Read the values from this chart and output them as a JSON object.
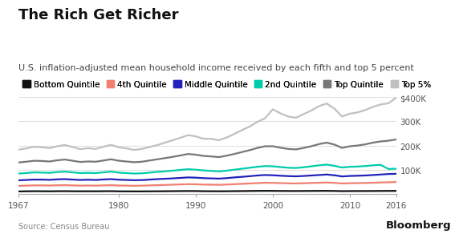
{
  "title": "The Rich Get Richer",
  "subtitle": "U.S. inflation-adjusted mean household income received by each fifth and top 5 percent",
  "source": "Source: Census Bureau",
  "bloomberg": "Bloomberg",
  "years": [
    1967,
    1968,
    1969,
    1970,
    1971,
    1972,
    1973,
    1974,
    1975,
    1976,
    1977,
    1978,
    1979,
    1980,
    1981,
    1982,
    1983,
    1984,
    1985,
    1986,
    1987,
    1988,
    1989,
    1990,
    1991,
    1992,
    1993,
    1994,
    1995,
    1996,
    1997,
    1998,
    1999,
    2000,
    2001,
    2002,
    2003,
    2004,
    2005,
    2006,
    2007,
    2008,
    2009,
    2010,
    2011,
    2012,
    2013,
    2014,
    2015,
    2016
  ],
  "series": {
    "Bottom Quintile": [
      10000,
      10500,
      11000,
      10800,
      10500,
      11000,
      11200,
      10800,
      10500,
      10700,
      10500,
      11000,
      11200,
      10500,
      10300,
      10100,
      10200,
      10500,
      10700,
      10900,
      11200,
      11500,
      11800,
      11500,
      11000,
      10800,
      10700,
      10900,
      11200,
      11500,
      11900,
      12200,
      12500,
      12300,
      12000,
      11800,
      11700,
      11900,
      12100,
      12300,
      12400,
      12000,
      11200,
      11500,
      11600,
      11700,
      11800,
      12000,
      12200,
      12300
    ],
    "4th Quintile": [
      33000,
      34000,
      35000,
      35000,
      34500,
      35500,
      36000,
      35000,
      34000,
      34500,
      34000,
      35000,
      36000,
      34500,
      34000,
      33500,
      33800,
      35000,
      36000,
      37000,
      38000,
      39000,
      40000,
      39500,
      38500,
      38000,
      37500,
      38500,
      40000,
      41500,
      43000,
      44500,
      46000,
      45500,
      44500,
      43500,
      43000,
      44000,
      45000,
      46000,
      47000,
      45500,
      43000,
      44000,
      44500,
      45000,
      46000,
      47000,
      48000,
      49000
    ],
    "Middle Quintile": [
      56000,
      57500,
      59000,
      59000,
      58000,
      60000,
      61000,
      59000,
      57500,
      58500,
      57500,
      59500,
      61000,
      58500,
      57500,
      56500,
      57000,
      59000,
      61000,
      62500,
      64000,
      66000,
      68000,
      67000,
      65000,
      64000,
      63000,
      65000,
      68000,
      70500,
      73000,
      76000,
      78000,
      77000,
      75000,
      73500,
      72500,
      74000,
      76000,
      78000,
      80000,
      77000,
      72000,
      74000,
      75000,
      76000,
      78000,
      80000,
      82000,
      83000
    ],
    "2nd Quintile": [
      84000,
      86000,
      89000,
      88000,
      87000,
      90000,
      92000,
      89000,
      86000,
      87000,
      86000,
      89000,
      92000,
      88000,
      86000,
      84000,
      85000,
      88000,
      91000,
      93000,
      96000,
      99000,
      102000,
      100000,
      97000,
      95000,
      93000,
      96000,
      100000,
      104000,
      108000,
      112000,
      115000,
      114000,
      111000,
      108000,
      107000,
      110000,
      114000,
      118000,
      121000,
      116000,
      109000,
      112000,
      113000,
      115000,
      118000,
      120000,
      103000,
      104000
    ],
    "Top Quintile": [
      130000,
      133000,
      137000,
      136000,
      134000,
      139000,
      142000,
      137000,
      132000,
      134000,
      133000,
      138000,
      143000,
      137000,
      134000,
      131000,
      133000,
      138000,
      143000,
      148000,
      153000,
      159000,
      165000,
      162000,
      157000,
      155000,
      152000,
      158000,
      165000,
      173000,
      181000,
      190000,
      197000,
      197000,
      191000,
      186000,
      184000,
      190000,
      197000,
      206000,
      212000,
      204000,
      190000,
      197000,
      200000,
      205000,
      212000,
      217000,
      220000,
      225000
    ],
    "Top 5%": [
      183000,
      188000,
      195000,
      193000,
      189000,
      197000,
      202000,
      194000,
      185000,
      189000,
      186000,
      195000,
      203000,
      193000,
      188000,
      182000,
      186000,
      194000,
      202000,
      212000,
      222000,
      232000,
      243000,
      238000,
      228000,
      228000,
      222000,
      233000,
      248000,
      264000,
      279000,
      298000,
      313000,
      350000,
      333000,
      320000,
      315000,
      330000,
      345000,
      363000,
      374000,
      353000,
      320000,
      332000,
      337000,
      347000,
      360000,
      370000,
      375000,
      397000
    ]
  },
  "colors": {
    "Bottom Quintile": "#111111",
    "4th Quintile": "#f08070",
    "Middle Quintile": "#2222bb",
    "2nd Quintile": "#00ccaa",
    "Top Quintile": "#777777",
    "Top 5%": "#c0c0c0"
  },
  "ylim": [
    0,
    420000
  ],
  "yticks": [
    0,
    100000,
    200000,
    300000,
    400000
  ],
  "ytick_labels": [
    "",
    "100K",
    "200K",
    "300K",
    "$400K"
  ],
  "xticks": [
    1967,
    1980,
    1990,
    2000,
    2010,
    2016
  ],
  "background_color": "#ffffff",
  "title_fontsize": 13,
  "subtitle_fontsize": 8,
  "legend_fontsize": 7.5,
  "tick_fontsize": 7.5,
  "line_width": 1.6
}
